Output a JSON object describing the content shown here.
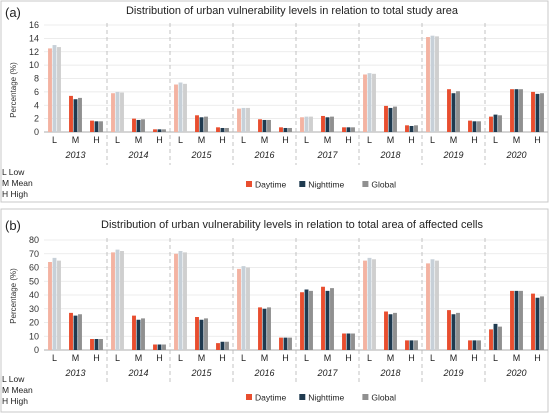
{
  "chart_data": [
    {
      "type": "bar",
      "panel_label": "(a)",
      "title": "Distribution of urban vulnerability levels in relation to total study area",
      "ylabel": "Percentage (%)",
      "ylim": [
        0,
        16
      ],
      "yticks": [
        "0",
        "2",
        "4",
        "6",
        "8",
        "10",
        "12",
        "14",
        "16"
      ],
      "years": [
        "2013",
        "2014",
        "2015",
        "2016",
        "2017",
        "2018",
        "2019",
        "2020"
      ],
      "levels": [
        "L",
        "M",
        "H"
      ],
      "highlight_years": [
        "2020"
      ],
      "series": [
        {
          "name": "Daytime",
          "values": [
            [
              12.5,
              5.4,
              1.7
            ],
            [
              5.8,
              2.0,
              0.4
            ],
            [
              7.1,
              2.5,
              0.7
            ],
            [
              3.5,
              1.9,
              0.7
            ],
            [
              2.2,
              2.4,
              0.7
            ],
            [
              8.6,
              3.9,
              1.0
            ],
            [
              14.2,
              6.4,
              1.7
            ],
            [
              2.3,
              6.4,
              6.0
            ]
          ]
        },
        {
          "name": "Nighttime",
          "values": [
            [
              13.0,
              4.9,
              1.6
            ],
            [
              6.0,
              1.8,
              0.4
            ],
            [
              7.4,
              2.2,
              0.6
            ],
            [
              3.6,
              1.8,
              0.6
            ],
            [
              2.3,
              2.2,
              0.7
            ],
            [
              8.8,
              3.6,
              0.9
            ],
            [
              14.4,
              5.8,
              1.6
            ],
            [
              2.6,
              6.4,
              5.7
            ]
          ]
        },
        {
          "name": "Global",
          "values": [
            [
              12.7,
              5.1,
              1.6
            ],
            [
              5.9,
              1.9,
              0.4
            ],
            [
              7.2,
              2.3,
              0.6
            ],
            [
              3.6,
              1.8,
              0.6
            ],
            [
              2.3,
              2.3,
              0.7
            ],
            [
              8.7,
              3.8,
              1.0
            ],
            [
              14.3,
              6.1,
              1.6
            ],
            [
              2.5,
              6.4,
              5.8
            ]
          ]
        }
      ]
    },
    {
      "type": "bar",
      "panel_label": "(b)",
      "title": "Distribution of urban vulnerability levels in relation to total area of affected cells",
      "ylabel": "Percentage (%)",
      "ylim": [
        0,
        80
      ],
      "yticks": [
        "0",
        "10",
        "20",
        "30",
        "40",
        "50",
        "60",
        "70",
        "80"
      ],
      "years": [
        "2013",
        "2014",
        "2015",
        "2016",
        "2017",
        "2018",
        "2019",
        "2020"
      ],
      "levels": [
        "L",
        "M",
        "H"
      ],
      "highlight_years": [
        "2017",
        "2020"
      ],
      "series": [
        {
          "name": "Daytime",
          "values": [
            [
              64,
              27,
              8
            ],
            [
              71,
              25,
              4
            ],
            [
              70,
              24,
              5
            ],
            [
              59,
              31,
              9
            ],
            [
              42,
              46,
              12
            ],
            [
              65,
              28,
              7
            ],
            [
              63,
              29,
              7
            ],
            [
              15,
              43,
              41
            ]
          ]
        },
        {
          "name": "Nighttime",
          "values": [
            [
              67,
              25,
              8
            ],
            [
              73,
              22,
              4
            ],
            [
              72,
              22,
              6
            ],
            [
              61,
              30,
              9
            ],
            [
              44,
              43,
              12
            ],
            [
              67,
              26,
              7
            ],
            [
              66,
              26,
              7
            ],
            [
              19,
              43,
              38
            ]
          ]
        },
        {
          "name": "Global",
          "values": [
            [
              65,
              26,
              8
            ],
            [
              72,
              23,
              4
            ],
            [
              71,
              23,
              6
            ],
            [
              60,
              31,
              9
            ],
            [
              43,
              45,
              12
            ],
            [
              66,
              27,
              7
            ],
            [
              65,
              27,
              7
            ],
            [
              17,
              43,
              39
            ]
          ]
        }
      ]
    }
  ],
  "legend": {
    "labels": [
      "Daytime",
      "Nighttime",
      "Global"
    ],
    "colors": [
      "#e84e2f",
      "#1f3a4f",
      "#909090"
    ],
    "light_colors": [
      "#f3b3a2",
      "#c7d0d8",
      "#cfcfcf"
    ]
  },
  "level_key": [
    "L Low",
    "M Mean",
    "H High"
  ]
}
